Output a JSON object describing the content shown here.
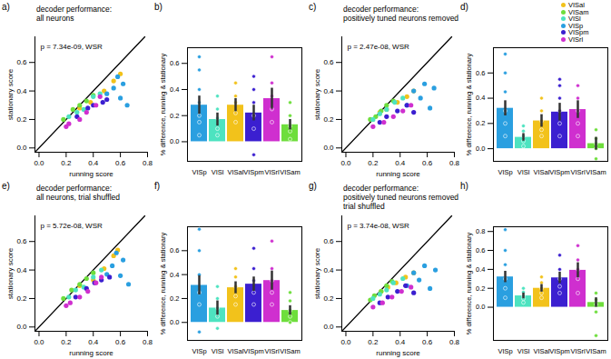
{
  "chart_data": [
    {
      "type": "scatter",
      "panel_label": "a)",
      "title": "decoder performance:\nall neurons",
      "annotation": "p = 7.34e-09, WSR",
      "x_label": "running score",
      "y_label": "stationary score",
      "legend": "top-right",
      "xlim": [
        -0.03,
        0.8
      ],
      "ylim": [
        -0.03,
        0.78
      ],
      "xticks": [
        {
          "value": 0,
          "label": "0.0"
        },
        {
          "value": 0.2,
          "label": "0.2"
        },
        {
          "value": 0.4,
          "label": "0.4"
        },
        {
          "value": 0.6,
          "label": "0.6"
        },
        {
          "value": 0.8,
          "label": "0.8"
        }
      ],
      "yticks": [
        {
          "value": 0,
          "label": "0.0"
        },
        {
          "value": 0.2,
          "label": "0.2"
        },
        {
          "value": 0.4,
          "label": "0.4"
        },
        {
          "value": 0.6,
          "label": "0.6"
        }
      ],
      "series": [
        {
          "name": "VISal",
          "color": "#f2c21b",
          "x": [
            0.3,
            0.38,
            0.48,
            0.55,
            0.6
          ],
          "y": [
            0.28,
            0.32,
            0.4,
            0.47,
            0.52
          ]
        },
        {
          "name": "VISam",
          "color": "#6ede3c",
          "x": [
            0.18,
            0.25,
            0.3,
            0.35,
            0.4
          ],
          "y": [
            0.2,
            0.27,
            0.3,
            0.33,
            0.37
          ]
        },
        {
          "name": "VISl",
          "color": "#4de3c0",
          "x": [
            0.22,
            0.28,
            0.33,
            0.4,
            0.45
          ],
          "y": [
            0.22,
            0.25,
            0.27,
            0.36,
            0.38
          ]
        },
        {
          "name": "VISp",
          "color": "#2a9fe0",
          "x": [
            0.5,
            0.55,
            0.6,
            0.62,
            0.65,
            0.58
          ],
          "y": [
            0.38,
            0.42,
            0.35,
            0.45,
            0.3,
            0.5
          ]
        },
        {
          "name": "VISpm",
          "color": "#3b1fd0",
          "x": [
            0.28,
            0.36,
            0.4,
            0.47,
            0.5
          ],
          "y": [
            0.22,
            0.28,
            0.3,
            0.32,
            0.34
          ]
        },
        {
          "name": "VISrl",
          "color": "#cf2fcf",
          "x": [
            0.2,
            0.22,
            0.3,
            0.35,
            0.42,
            0.45
          ],
          "y": [
            0.15,
            0.17,
            0.2,
            0.25,
            0.3,
            0.36
          ]
        }
      ]
    },
    {
      "type": "bar",
      "panel_label": "b)",
      "y_label": "% difference, running & stationary",
      "categories": [
        "VISp",
        "VISl",
        "VISal",
        "VISpm",
        "VISrl",
        "VISam"
      ],
      "values": [
        0.28,
        0.17,
        0.28,
        0.22,
        0.33,
        0.13
      ],
      "errors": [
        0.07,
        0.05,
        0.05,
        0.06,
        0.08,
        0.04
      ],
      "colors": [
        "#2a9fe0",
        "#4de3c0",
        "#f2c21b",
        "#3b1fd0",
        "#cf2fcf",
        "#6ede3c"
      ],
      "points": [
        [
          0.05,
          0.15,
          0.2,
          0.3,
          0.4,
          0.55,
          0.65
        ],
        [
          0.05,
          0.1,
          0.18,
          0.25,
          0.35
        ],
        [
          0.15,
          0.22,
          0.3,
          0.35,
          0.45
        ],
        [
          -0.1,
          0.1,
          0.2,
          0.3,
          0.4,
          0.5
        ],
        [
          0.15,
          0.25,
          0.35,
          0.45,
          0.65
        ],
        [
          0.02,
          0.08,
          0.12,
          0.2,
          0.3
        ]
      ],
      "ylim": [
        -0.15,
        0.72
      ],
      "yticks": [
        {
          "value": 0,
          "label": "0.0"
        },
        {
          "value": 0.2,
          "label": "0.2"
        },
        {
          "value": 0.4,
          "label": "0.4"
        },
        {
          "value": 0.6,
          "label": "0.6"
        }
      ]
    },
    {
      "type": "scatter",
      "panel_label": "c)",
      "title": "decoder performance:\npositively tuned neurons removed",
      "annotation": "p = 2.47e-08, WSR",
      "x_label": "running score",
      "y_label": "stationary score",
      "xlim": [
        -0.03,
        0.8
      ],
      "ylim": [
        -0.03,
        0.78
      ],
      "xticks": [
        {
          "value": 0,
          "label": "0.0"
        },
        {
          "value": 0.2,
          "label": "0.2"
        },
        {
          "value": 0.4,
          "label": "0.4"
        },
        {
          "value": 0.6,
          "label": "0.6"
        },
        {
          "value": 0.8,
          "label": "0.8"
        }
      ],
      "yticks": [
        {
          "value": 0,
          "label": "0.0"
        },
        {
          "value": 0.2,
          "label": "0.2"
        },
        {
          "value": 0.4,
          "label": "0.4"
        },
        {
          "value": 0.6,
          "label": "0.6"
        }
      ],
      "series": [
        {
          "name": "VISal",
          "color": "#f2c21b",
          "x": [
            0.25,
            0.3,
            0.38,
            0.45,
            0.5
          ],
          "y": [
            0.25,
            0.27,
            0.32,
            0.36,
            0.4
          ]
        },
        {
          "name": "VISam",
          "color": "#6ede3c",
          "x": [
            0.18,
            0.22,
            0.26,
            0.3,
            0.35
          ],
          "y": [
            0.2,
            0.22,
            0.26,
            0.3,
            0.33
          ]
        },
        {
          "name": "VISl",
          "color": "#4de3c0",
          "x": [
            0.2,
            0.25,
            0.3,
            0.36,
            0.42
          ],
          "y": [
            0.2,
            0.24,
            0.27,
            0.32,
            0.35
          ]
        },
        {
          "name": "VISp",
          "color": "#2a9fe0",
          "x": [
            0.45,
            0.5,
            0.55,
            0.58,
            0.62,
            0.65
          ],
          "y": [
            0.3,
            0.4,
            0.35,
            0.45,
            0.28,
            0.42
          ]
        },
        {
          "name": "VISpm",
          "color": "#3b1fd0",
          "x": [
            0.25,
            0.3,
            0.38,
            0.45,
            0.5
          ],
          "y": [
            0.18,
            0.22,
            0.26,
            0.3,
            0.25
          ]
        },
        {
          "name": "VISrl",
          "color": "#cf2fcf",
          "x": [
            0.2,
            0.28,
            0.35,
            0.42,
            0.48
          ],
          "y": [
            0.15,
            0.18,
            0.22,
            0.26,
            0.3
          ]
        }
      ]
    },
    {
      "type": "bar",
      "panel_label": "d)",
      "y_label": "% difference, running & stationary",
      "categories": [
        "VISp",
        "VISl",
        "VISal",
        "VISpm",
        "VISrl",
        "VISam"
      ],
      "values": [
        0.32,
        0.09,
        0.22,
        0.29,
        0.31,
        0.04
      ],
      "errors": [
        0.06,
        0.03,
        0.05,
        0.07,
        0.07,
        0.05
      ],
      "colors": [
        "#2a9fe0",
        "#4de3c0",
        "#f2c21b",
        "#3b1fd0",
        "#cf2fcf",
        "#6ede3c"
      ],
      "points": [
        [
          0.1,
          0.2,
          0.3,
          0.45,
          0.6,
          0.75
        ],
        [
          0.02,
          0.06,
          0.1,
          0.14,
          0.18
        ],
        [
          0.1,
          0.15,
          0.22,
          0.3,
          0.4
        ],
        [
          0.1,
          0.2,
          0.3,
          0.4,
          0.5,
          0.55
        ],
        [
          0.1,
          0.2,
          0.3,
          0.4,
          0.5
        ],
        [
          -0.08,
          0.0,
          0.04,
          0.08,
          0.15
        ]
      ],
      "ylim": [
        -0.1,
        0.8
      ],
      "yticks": [
        {
          "value": 0,
          "label": "0.0"
        },
        {
          "value": 0.2,
          "label": "0.2"
        },
        {
          "value": 0.4,
          "label": "0.4"
        },
        {
          "value": 0.6,
          "label": "0.6"
        }
      ]
    },
    {
      "type": "scatter",
      "panel_label": "e)",
      "title": "decoder performance:\nall neurons, trial shuffled",
      "annotation": "p = 5.72e-08, WSR",
      "x_label": "running score",
      "y_label": "stationary score",
      "xlim": [
        -0.03,
        0.8
      ],
      "ylim": [
        -0.03,
        0.78
      ],
      "xticks": [
        {
          "value": 0,
          "label": "0.0"
        },
        {
          "value": 0.2,
          "label": "0.2"
        },
        {
          "value": 0.4,
          "label": "0.4"
        },
        {
          "value": 0.6,
          "label": "0.6"
        },
        {
          "value": 0.8,
          "label": "0.8"
        }
      ],
      "yticks": [
        {
          "value": 0,
          "label": "0.0"
        },
        {
          "value": 0.2,
          "label": "0.2"
        },
        {
          "value": 0.4,
          "label": "0.4"
        },
        {
          "value": 0.6,
          "label": "0.6"
        }
      ],
      "series": [
        {
          "name": "VISal",
          "color": "#f2c21b",
          "x": [
            0.3,
            0.4,
            0.48,
            0.55,
            0.58
          ],
          "y": [
            0.29,
            0.33,
            0.41,
            0.5,
            0.54
          ]
        },
        {
          "name": "VISam",
          "color": "#6ede3c",
          "x": [
            0.18,
            0.24,
            0.3,
            0.35,
            0.4
          ],
          "y": [
            0.2,
            0.26,
            0.3,
            0.34,
            0.38
          ]
        },
        {
          "name": "VISl",
          "color": "#4de3c0",
          "x": [
            0.22,
            0.27,
            0.33,
            0.4,
            0.46
          ],
          "y": [
            0.21,
            0.26,
            0.28,
            0.35,
            0.4
          ]
        },
        {
          "name": "VISp",
          "color": "#2a9fe0",
          "x": [
            0.5,
            0.54,
            0.6,
            0.62,
            0.66,
            0.57
          ],
          "y": [
            0.37,
            0.43,
            0.36,
            0.47,
            0.3,
            0.52
          ]
        },
        {
          "name": "VISpm",
          "color": "#3b1fd0",
          "x": [
            0.27,
            0.35,
            0.41,
            0.46,
            0.52
          ],
          "y": [
            0.21,
            0.27,
            0.31,
            0.33,
            0.35
          ]
        },
        {
          "name": "VISrl",
          "color": "#cf2fcf",
          "x": [
            0.2,
            0.23,
            0.3,
            0.36,
            0.42,
            0.46
          ],
          "y": [
            0.15,
            0.17,
            0.21,
            0.25,
            0.31,
            0.35
          ]
        }
      ]
    },
    {
      "type": "bar",
      "panel_label": "f)",
      "y_label": "% difference, running & stationary",
      "categories": [
        "VISp",
        "VISl",
        "VISal",
        "VISpm",
        "VISrl",
        "VISam"
      ],
      "values": [
        0.31,
        0.12,
        0.29,
        0.32,
        0.35,
        0.1
      ],
      "errors": [
        0.08,
        0.06,
        0.05,
        0.06,
        0.08,
        0.04
      ],
      "colors": [
        "#2a9fe0",
        "#4de3c0",
        "#f2c21b",
        "#3b1fd0",
        "#cf2fcf",
        "#6ede3c"
      ],
      "points": [
        [
          -0.08,
          0.15,
          0.25,
          0.4,
          0.6,
          0.78
        ],
        [
          -0.05,
          0.05,
          0.12,
          0.2,
          0.3
        ],
        [
          0.15,
          0.22,
          0.3,
          0.38,
          0.45
        ],
        [
          0.15,
          0.25,
          0.35,
          0.45,
          0.62
        ],
        [
          0.15,
          0.25,
          0.35,
          0.45,
          0.68
        ],
        [
          0.0,
          0.05,
          0.1,
          0.18,
          0.25
        ]
      ],
      "ylim": [
        -0.15,
        0.8
      ],
      "yticks": [
        {
          "value": 0,
          "label": "0.0"
        },
        {
          "value": 0.2,
          "label": "0.2"
        },
        {
          "value": 0.4,
          "label": "0.4"
        },
        {
          "value": 0.6,
          "label": "0.6"
        }
      ]
    },
    {
      "type": "scatter",
      "panel_label": "g)",
      "title": "decoder performance:\npositively tuned neurons removed\ntrial shuffled",
      "annotation": "p = 3.74e-08, WSR",
      "x_label": "running score",
      "y_label": "stationary score",
      "xlim": [
        -0.03,
        0.8
      ],
      "ylim": [
        -0.03,
        0.78
      ],
      "xticks": [
        {
          "value": 0,
          "label": "0.0"
        },
        {
          "value": 0.2,
          "label": "0.2"
        },
        {
          "value": 0.4,
          "label": "0.4"
        },
        {
          "value": 0.6,
          "label": "0.6"
        },
        {
          "value": 0.8,
          "label": "0.8"
        }
      ],
      "yticks": [
        {
          "value": 0,
          "label": "0.0"
        },
        {
          "value": 0.2,
          "label": "0.2"
        },
        {
          "value": 0.4,
          "label": "0.4"
        },
        {
          "value": 0.6,
          "label": "0.6"
        }
      ],
      "series": [
        {
          "name": "VISal",
          "color": "#f2c21b",
          "x": [
            0.26,
            0.31,
            0.37,
            0.44,
            0.5
          ],
          "y": [
            0.25,
            0.28,
            0.31,
            0.35,
            0.38
          ]
        },
        {
          "name": "VISam",
          "color": "#6ede3c",
          "x": [
            0.18,
            0.21,
            0.26,
            0.3,
            0.34
          ],
          "y": [
            0.19,
            0.22,
            0.25,
            0.29,
            0.32
          ]
        },
        {
          "name": "VISl",
          "color": "#4de3c0",
          "x": [
            0.2,
            0.25,
            0.3,
            0.35,
            0.42
          ],
          "y": [
            0.2,
            0.23,
            0.26,
            0.31,
            0.34
          ]
        },
        {
          "name": "VISp",
          "color": "#2a9fe0",
          "x": [
            0.45,
            0.5,
            0.54,
            0.58,
            0.62,
            0.66
          ],
          "y": [
            0.29,
            0.38,
            0.33,
            0.43,
            0.27,
            0.4
          ]
        },
        {
          "name": "VISpm",
          "color": "#3b1fd0",
          "x": [
            0.25,
            0.31,
            0.38,
            0.44,
            0.5
          ],
          "y": [
            0.17,
            0.21,
            0.25,
            0.29,
            0.24
          ]
        },
        {
          "name": "VISrl",
          "color": "#cf2fcf",
          "x": [
            0.2,
            0.27,
            0.34,
            0.41,
            0.48
          ],
          "y": [
            0.14,
            0.17,
            0.21,
            0.25,
            0.28
          ]
        }
      ]
    },
    {
      "type": "bar",
      "panel_label": "h)",
      "y_label": "% difference, running & stationary",
      "categories": [
        "VISp",
        "VISl",
        "VISal",
        "VISpm",
        "VISrl",
        "VISam"
      ],
      "values": [
        0.32,
        0.12,
        0.2,
        0.31,
        0.39,
        0.05
      ],
      "errors": [
        0.06,
        0.03,
        0.04,
        0.06,
        0.08,
        0.05
      ],
      "colors": [
        "#2a9fe0",
        "#4de3c0",
        "#f2c21b",
        "#3b1fd0",
        "#cf2fcf",
        "#6ede3c"
      ],
      "points": [
        [
          0.1,
          0.2,
          0.3,
          0.45,
          0.6,
          0.82
        ],
        [
          0.05,
          0.09,
          0.12,
          0.16,
          0.2
        ],
        [
          0.1,
          0.15,
          0.2,
          0.26,
          0.32
        ],
        [
          0.15,
          0.22,
          0.3,
          0.4,
          0.55
        ],
        [
          0.15,
          0.3,
          0.4,
          0.5,
          0.65
        ],
        [
          -0.3,
          -0.05,
          0.03,
          0.08,
          0.15
        ]
      ],
      "ylim": [
        -0.35,
        0.85
      ],
      "yticks": [
        {
          "value": 0,
          "label": "0.0"
        },
        {
          "value": 0.2,
          "label": "0.2"
        },
        {
          "value": 0.4,
          "label": "0.4"
        },
        {
          "value": 0.6,
          "label": "0.6"
        },
        {
          "value": 0.8,
          "label": "0.8"
        }
      ]
    }
  ]
}
